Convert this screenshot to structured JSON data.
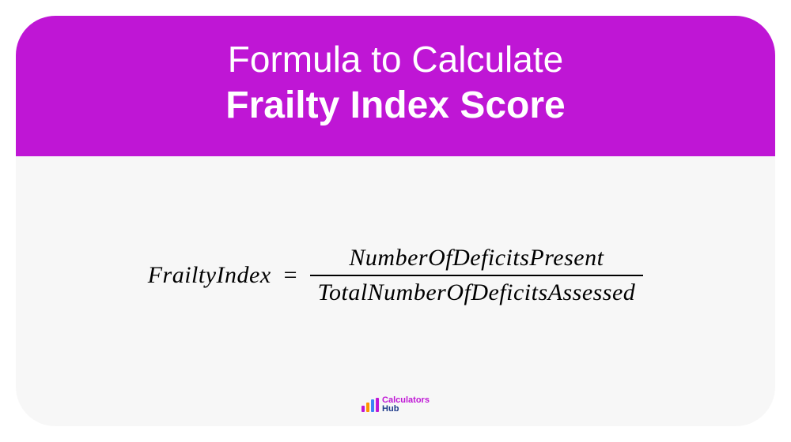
{
  "card": {
    "background_color": "#f7f7f7",
    "border_radius": 50,
    "header": {
      "background_color": "#bf16d5",
      "line1": "Formula to Calculate",
      "line1_fontsize": 46,
      "line1_weight": 400,
      "line2": "Frailty Index Score",
      "line2_fontsize": 48,
      "line2_weight": 700,
      "text_color": "#ffffff"
    },
    "formula": {
      "lhs": "FrailtyIndex",
      "equals": "=",
      "numerator": "NumberOfDeficitsPresent",
      "denominator": "TotalNumberOfDeficitsAssessed",
      "font_family": "serif-italic",
      "fontsize": 30,
      "text_color": "#000000",
      "fraction_bar_color": "#000000"
    },
    "logo": {
      "bars": [
        {
          "color": "#bf16d5",
          "height": 8
        },
        {
          "color": "#ff9500",
          "height": 12
        },
        {
          "color": "#3b82f6",
          "height": 16
        },
        {
          "color": "#bf16d5",
          "height": 18
        }
      ],
      "text1": "Calculators",
      "text1_color": "#bf16d5",
      "text2": "Hub",
      "text2_color": "#1e3a8a",
      "fontsize": 11
    }
  }
}
